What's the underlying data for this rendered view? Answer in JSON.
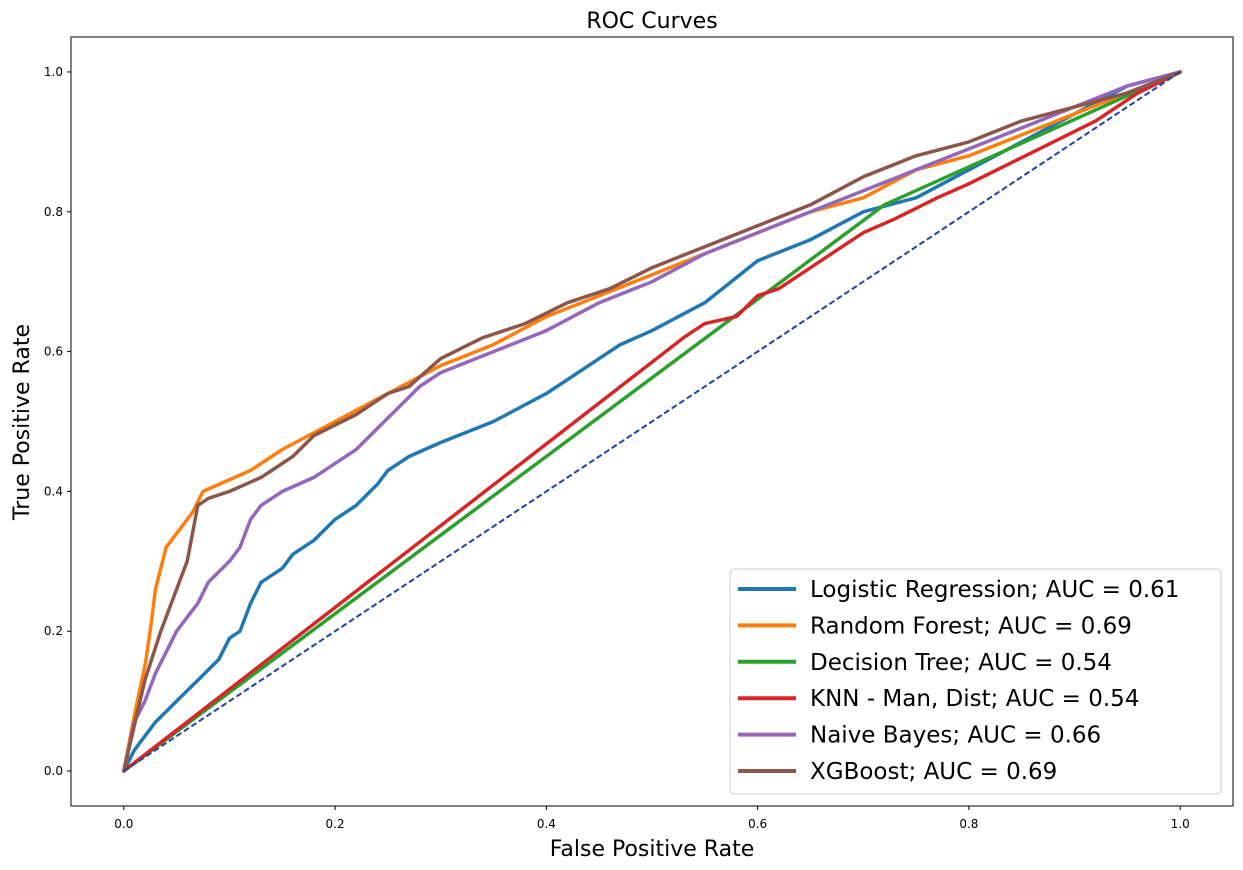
{
  "chart_data": {
    "type": "line",
    "title": "ROC Curves",
    "xlabel": "False Positive Rate",
    "ylabel": "True Positive Rate",
    "xlim": [
      -0.05,
      1.05
    ],
    "ylim": [
      -0.05,
      1.05
    ],
    "xticks": [
      0.0,
      0.2,
      0.4,
      0.6,
      0.8,
      1.0
    ],
    "yticks": [
      0.0,
      0.2,
      0.4,
      0.6,
      0.8,
      1.0
    ],
    "xtick_labels": [
      "0.0",
      "0.2",
      "0.4",
      "0.6",
      "0.8",
      "1.0"
    ],
    "ytick_labels": [
      "0.0",
      "0.2",
      "0.4",
      "0.6",
      "0.8",
      "1.0"
    ],
    "grid": false,
    "legend_position": "lower right",
    "series": [
      {
        "name": "Logistic Regression; AUC = 0.61",
        "color": "#1f77b4",
        "x": [
          0,
          0.01,
          0.02,
          0.03,
          0.05,
          0.07,
          0.09,
          0.1,
          0.11,
          0.12,
          0.13,
          0.15,
          0.16,
          0.18,
          0.2,
          0.22,
          0.24,
          0.25,
          0.27,
          0.3,
          0.35,
          0.4,
          0.43,
          0.47,
          0.5,
          0.55,
          0.6,
          0.65,
          0.7,
          0.75,
          0.8,
          0.85,
          0.9,
          0.95,
          1.0
        ],
        "y": [
          0,
          0.03,
          0.05,
          0.07,
          0.1,
          0.13,
          0.16,
          0.19,
          0.2,
          0.24,
          0.27,
          0.29,
          0.31,
          0.33,
          0.36,
          0.38,
          0.41,
          0.43,
          0.45,
          0.47,
          0.5,
          0.54,
          0.57,
          0.61,
          0.63,
          0.67,
          0.73,
          0.76,
          0.8,
          0.82,
          0.86,
          0.9,
          0.94,
          0.98,
          1.0
        ]
      },
      {
        "name": "Random Forest; AUC = 0.69",
        "color": "#ff7f0e",
        "x": [
          0,
          0.01,
          0.02,
          0.025,
          0.03,
          0.04,
          0.055,
          0.065,
          0.075,
          0.09,
          0.12,
          0.15,
          0.2,
          0.25,
          0.3,
          0.35,
          0.4,
          0.45,
          0.5,
          0.55,
          0.6,
          0.65,
          0.7,
          0.75,
          0.8,
          0.85,
          0.9,
          0.95,
          1.0
        ],
        "y": [
          0,
          0.08,
          0.15,
          0.2,
          0.26,
          0.32,
          0.35,
          0.37,
          0.4,
          0.41,
          0.43,
          0.46,
          0.5,
          0.54,
          0.58,
          0.61,
          0.65,
          0.68,
          0.71,
          0.74,
          0.77,
          0.8,
          0.82,
          0.86,
          0.88,
          0.91,
          0.94,
          0.97,
          1.0
        ]
      },
      {
        "name": "Decision Tree; AUC = 0.54",
        "color": "#2ca02c",
        "x": [
          0,
          0.72,
          1.0
        ],
        "y": [
          0,
          0.81,
          1.0
        ]
      },
      {
        "name": "KNN - Man, Dist; AUC = 0.54",
        "color": "#d62728",
        "x": [
          0,
          0.53,
          0.55,
          0.58,
          0.6,
          0.62,
          0.65,
          0.68,
          0.7,
          0.73,
          0.77,
          0.8,
          0.84,
          0.88,
          0.92,
          0.96,
          1.0
        ],
        "y": [
          0,
          0.62,
          0.64,
          0.65,
          0.68,
          0.69,
          0.72,
          0.75,
          0.77,
          0.79,
          0.82,
          0.84,
          0.87,
          0.9,
          0.93,
          0.97,
          1.0
        ]
      },
      {
        "name": "Naive Bayes; AUC = 0.66",
        "color": "#9467bd",
        "x": [
          0,
          0.01,
          0.02,
          0.03,
          0.04,
          0.05,
          0.06,
          0.07,
          0.08,
          0.1,
          0.11,
          0.12,
          0.13,
          0.15,
          0.18,
          0.2,
          0.22,
          0.24,
          0.26,
          0.28,
          0.3,
          0.35,
          0.4,
          0.45,
          0.5,
          0.55,
          0.6,
          0.65,
          0.7,
          0.75,
          0.8,
          0.85,
          0.9,
          0.95,
          1.0
        ],
        "y": [
          0,
          0.07,
          0.1,
          0.14,
          0.17,
          0.2,
          0.22,
          0.24,
          0.27,
          0.3,
          0.32,
          0.36,
          0.38,
          0.4,
          0.42,
          0.44,
          0.46,
          0.49,
          0.52,
          0.55,
          0.57,
          0.6,
          0.63,
          0.67,
          0.7,
          0.74,
          0.77,
          0.8,
          0.83,
          0.86,
          0.89,
          0.92,
          0.95,
          0.98,
          1.0
        ]
      },
      {
        "name": "XGBoost; AUC = 0.69",
        "color": "#8c564b",
        "x": [
          0,
          0.02,
          0.035,
          0.05,
          0.06,
          0.07,
          0.08,
          0.1,
          0.13,
          0.16,
          0.18,
          0.22,
          0.25,
          0.27,
          0.3,
          0.34,
          0.38,
          0.42,
          0.46,
          0.5,
          0.55,
          0.6,
          0.65,
          0.7,
          0.75,
          0.8,
          0.85,
          0.9,
          0.95,
          1.0
        ],
        "y": [
          0,
          0.13,
          0.2,
          0.26,
          0.3,
          0.38,
          0.39,
          0.4,
          0.42,
          0.45,
          0.48,
          0.51,
          0.54,
          0.55,
          0.59,
          0.62,
          0.64,
          0.67,
          0.69,
          0.72,
          0.75,
          0.78,
          0.81,
          0.85,
          0.88,
          0.9,
          0.93,
          0.95,
          0.97,
          1.0
        ]
      }
    ],
    "baseline": {
      "x": [
        0,
        1
      ],
      "y": [
        0,
        1
      ],
      "color": "#1f44a0",
      "style": "dashed"
    }
  }
}
